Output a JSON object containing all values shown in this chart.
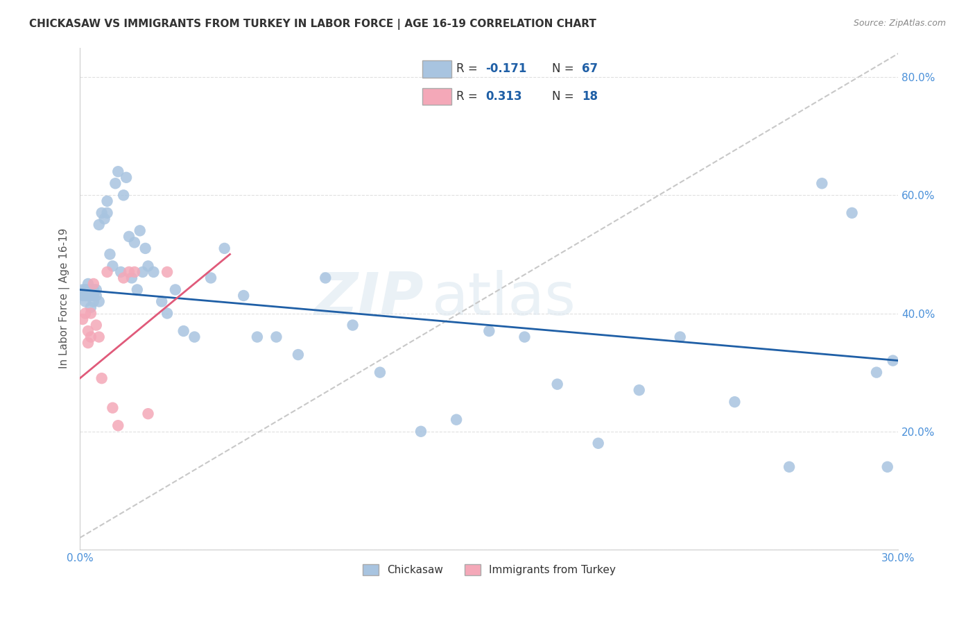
{
  "title": "CHICKASAW VS IMMIGRANTS FROM TURKEY IN LABOR FORCE | AGE 16-19 CORRELATION CHART",
  "source": "Source: ZipAtlas.com",
  "ylabel": "In Labor Force | Age 16-19",
  "xlim": [
    0.0,
    0.3
  ],
  "ylim": [
    0.0,
    0.85
  ],
  "xticks": [
    0.0,
    0.05,
    0.1,
    0.15,
    0.2,
    0.25,
    0.3
  ],
  "xticklabels": [
    "0.0%",
    "",
    "",
    "",
    "",
    "",
    "30.0%"
  ],
  "yticks": [
    0.0,
    0.2,
    0.4,
    0.6,
    0.8
  ],
  "yticklabels": [
    "",
    "20.0%",
    "40.0%",
    "60.0%",
    "80.0%"
  ],
  "chickasaw_color": "#a8c4e0",
  "turkey_color": "#f4a8b8",
  "chickasaw_line_color": "#1f5fa6",
  "turkey_line_color": "#e05a7a",
  "dashed_line_color": "#c8c8c8",
  "watermark_zip": "ZIP",
  "watermark_atlas": "atlas",
  "legend_R_label": "R = ",
  "legend_N_label": "N = ",
  "legend_R_chickasaw": "-0.171",
  "legend_N_chickasaw": "67",
  "legend_R_turkey": "0.313",
  "legend_N_turkey": "18",
  "legend_text_color": "#1f5fa6",
  "legend_label_color": "#333333",
  "chickasaw_x": [
    0.001,
    0.001,
    0.002,
    0.002,
    0.002,
    0.003,
    0.003,
    0.003,
    0.004,
    0.004,
    0.004,
    0.005,
    0.005,
    0.005,
    0.006,
    0.006,
    0.007,
    0.007,
    0.008,
    0.009,
    0.01,
    0.01,
    0.011,
    0.012,
    0.013,
    0.014,
    0.015,
    0.016,
    0.017,
    0.018,
    0.019,
    0.02,
    0.021,
    0.022,
    0.023,
    0.024,
    0.025,
    0.027,
    0.03,
    0.032,
    0.035,
    0.038,
    0.042,
    0.048,
    0.053,
    0.06,
    0.065,
    0.072,
    0.08,
    0.09,
    0.1,
    0.11,
    0.125,
    0.138,
    0.15,
    0.163,
    0.175,
    0.19,
    0.205,
    0.22,
    0.24,
    0.26,
    0.272,
    0.283,
    0.292,
    0.296,
    0.298
  ],
  "chickasaw_y": [
    0.43,
    0.44,
    0.42,
    0.43,
    0.44,
    0.43,
    0.44,
    0.45,
    0.41,
    0.43,
    0.44,
    0.42,
    0.43,
    0.44,
    0.43,
    0.44,
    0.42,
    0.55,
    0.57,
    0.56,
    0.57,
    0.59,
    0.5,
    0.48,
    0.62,
    0.64,
    0.47,
    0.6,
    0.63,
    0.53,
    0.46,
    0.52,
    0.44,
    0.54,
    0.47,
    0.51,
    0.48,
    0.47,
    0.42,
    0.4,
    0.44,
    0.37,
    0.36,
    0.46,
    0.51,
    0.43,
    0.36,
    0.36,
    0.33,
    0.46,
    0.38,
    0.3,
    0.2,
    0.22,
    0.37,
    0.36,
    0.28,
    0.18,
    0.27,
    0.36,
    0.25,
    0.14,
    0.62,
    0.57,
    0.3,
    0.14,
    0.32
  ],
  "turkey_x": [
    0.001,
    0.002,
    0.003,
    0.003,
    0.004,
    0.004,
    0.005,
    0.006,
    0.007,
    0.008,
    0.01,
    0.012,
    0.014,
    0.016,
    0.018,
    0.02,
    0.025,
    0.032
  ],
  "turkey_y": [
    0.39,
    0.4,
    0.37,
    0.35,
    0.4,
    0.36,
    0.45,
    0.38,
    0.36,
    0.29,
    0.47,
    0.24,
    0.21,
    0.46,
    0.47,
    0.47,
    0.23,
    0.47
  ],
  "chickasaw_regline": [
    0.44,
    0.32
  ],
  "turkey_regline_x": [
    0.0,
    0.055
  ],
  "turkey_regline_y": [
    0.29,
    0.5
  ],
  "dashed_line_x": [
    0.0,
    0.3
  ],
  "dashed_line_y": [
    0.02,
    0.84
  ],
  "background_color": "#ffffff",
  "grid_color": "#e0e0e0"
}
